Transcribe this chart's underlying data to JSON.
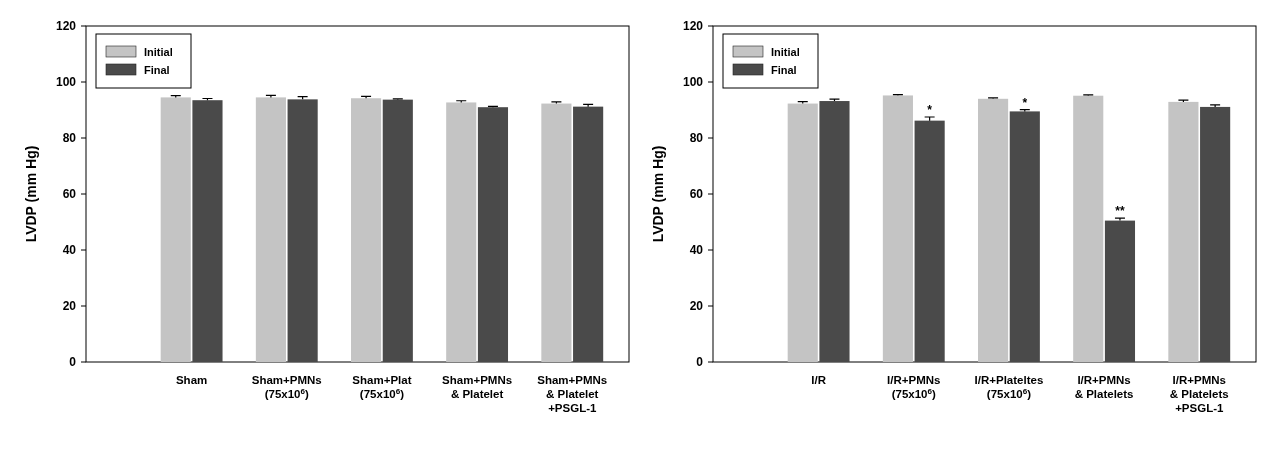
{
  "chart_data": [
    {
      "type": "bar",
      "ylabel": "LVDP (mm Hg)",
      "categories": [
        "Sham",
        "Sham+PMNs\n(75x10$^{6}$)",
        "Sham+Plat\n(75x10$^{6}$)",
        "Sham+PMNs\n& Platelet",
        "Sham+PMNs\n& Platelet\n+PSGL-1"
      ],
      "series": [
        {
          "name": "Initial",
          "color": "#c4c4c4",
          "values": [
            94.5,
            94.5,
            94.2,
            92.7,
            92.3
          ],
          "errors": [
            0.6,
            0.7,
            0.7,
            0.6,
            0.6
          ]
        },
        {
          "name": "Final",
          "color": "#4a4a4a",
          "values": [
            93.5,
            93.8,
            93.7,
            91.0,
            91.2
          ],
          "errors": [
            0.6,
            1.0,
            0.3,
            0.3,
            0.8
          ]
        }
      ],
      "ylim": [
        0,
        120
      ],
      "yticks": [
        0,
        20,
        40,
        60,
        80,
        100,
        120
      ],
      "grid": false,
      "legend": "top left"
    },
    {
      "type": "bar",
      "ylabel": "LVDP (mm Hg)",
      "categories": [
        "I/R",
        "I/R+PMNs\n(75x10$^{6}$)",
        "I/R+Plateltes\n(75x10$^{6}$)",
        "I/R+PMNs\n& Platelets",
        "I/R+PMNs\n& Platelets\n+PSGL-1"
      ],
      "series": [
        {
          "name": "Initial",
          "color": "#c4c4c4",
          "values": [
            92.3,
            95.2,
            94.0,
            95.1,
            92.9
          ],
          "errors": [
            0.7,
            0.3,
            0.3,
            0.3,
            0.6
          ]
        },
        {
          "name": "Final",
          "color": "#4a4a4a",
          "values": [
            93.2,
            86.2,
            89.5,
            50.5,
            91.1
          ],
          "errors": [
            0.7,
            1.3,
            0.6,
            0.9,
            0.7
          ]
        }
      ],
      "ylim": [
        0,
        120
      ],
      "yticks": [
        0,
        20,
        40,
        60,
        80,
        100,
        120
      ],
      "grid": false,
      "legend": "top left",
      "annotations": [
        {
          "text": "*",
          "x": "I/R+PMNs\n(75x10$^{6}$)",
          "y": 87.5
        },
        {
          "text": "*",
          "x": "I/R+Plateltes\n(75x10$^{6}$)",
          "y": 90.1
        },
        {
          "text": "**",
          "x": "I/R+PMNs\n& Platelets",
          "y": 51.4
        }
      ]
    }
  ]
}
